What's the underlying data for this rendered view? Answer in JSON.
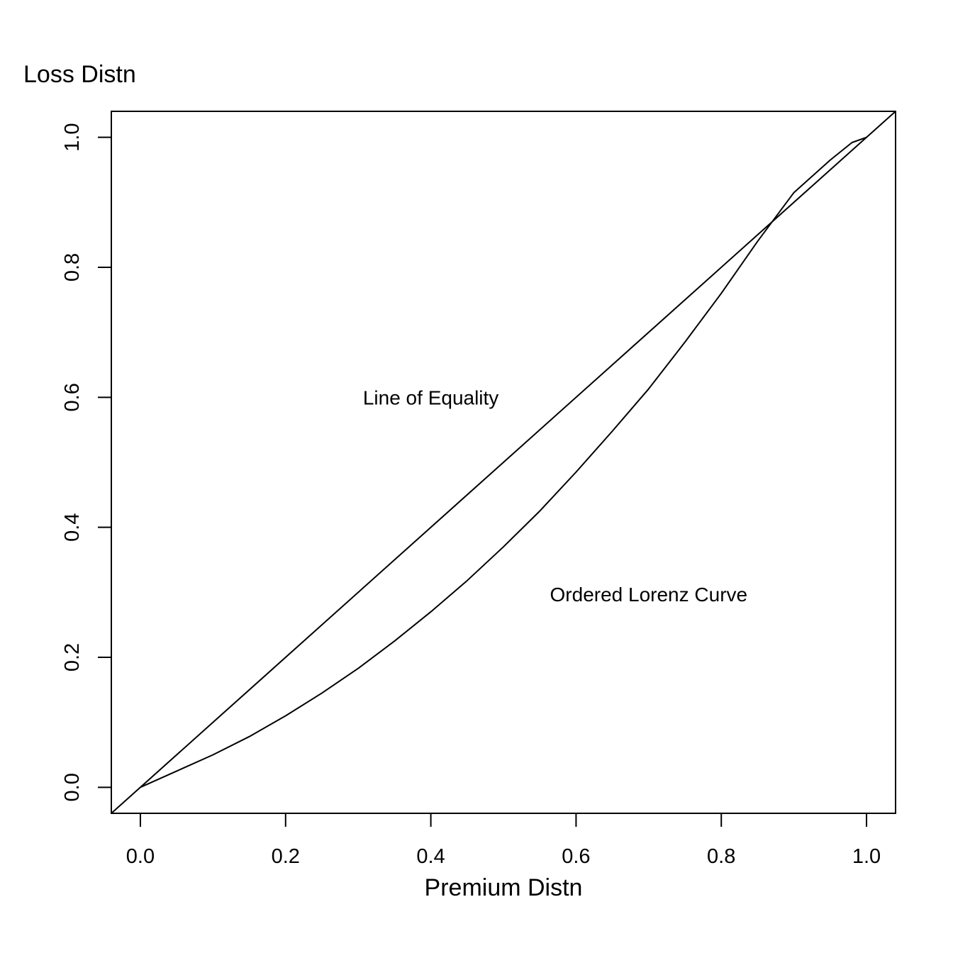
{
  "chart_data": {
    "type": "line",
    "title": "",
    "xlabel": "Premium Distn",
    "ylabel": "Loss Distn",
    "xlim": [
      -0.04,
      1.04
    ],
    "ylim": [
      -0.04,
      1.04
    ],
    "xticks": [
      0.0,
      0.2,
      0.4,
      0.6,
      0.8,
      1.0
    ],
    "yticks": [
      0.0,
      0.2,
      0.4,
      0.6,
      0.8,
      1.0
    ],
    "xtick_labels": [
      "0.0",
      "0.2",
      "0.4",
      "0.6",
      "0.8",
      "1.0"
    ],
    "ytick_labels": [
      "0.0",
      "0.2",
      "0.4",
      "0.6",
      "0.8",
      "1.0"
    ],
    "grid": false,
    "legend": "none",
    "series": [
      {
        "x": [
          -0.04,
          1.04
        ],
        "y": [
          -0.04,
          1.04
        ],
        "color": "#000000"
      },
      {
        "x": [
          0.0,
          0.05,
          0.1,
          0.15,
          0.2,
          0.25,
          0.3,
          0.35,
          0.4,
          0.45,
          0.5,
          0.55,
          0.6,
          0.65,
          0.7,
          0.75,
          0.8,
          0.85,
          0.9,
          0.95,
          0.98,
          1.0
        ],
        "y": [
          0.0,
          0.025,
          0.05,
          0.078,
          0.11,
          0.145,
          0.183,
          0.225,
          0.27,
          0.318,
          0.37,
          0.425,
          0.485,
          0.548,
          0.613,
          0.685,
          0.76,
          0.84,
          0.915,
          0.965,
          0.992,
          1.0
        ],
        "color": "#000000"
      }
    ],
    "annotations": [
      {
        "text": "Line of Equality",
        "x": 0.4,
        "y": 0.6
      },
      {
        "text": "Ordered Lorenz Curve",
        "x": 0.7,
        "y": 0.297
      }
    ]
  }
}
